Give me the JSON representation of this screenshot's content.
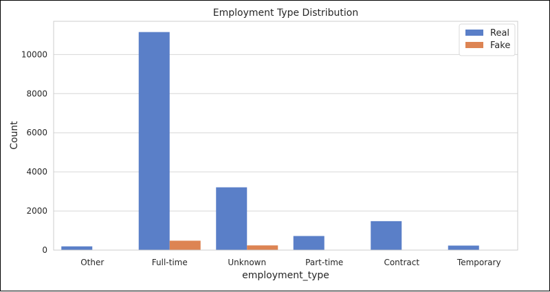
{
  "chart_data": {
    "type": "bar",
    "title": "Employment Type Distribution",
    "xlabel": "employment_type",
    "ylabel": "Count",
    "categories": [
      "Other",
      "Full-time",
      "Unknown",
      "Part-time",
      "Contract",
      "Temporary"
    ],
    "series": [
      {
        "name": "Real",
        "color": "#5a7fc8",
        "values": [
          190,
          11150,
          3210,
          720,
          1480,
          230
        ]
      },
      {
        "name": "Fake",
        "color": "#dd8453",
        "values": [
          10,
          480,
          240,
          15,
          5,
          5
        ]
      }
    ],
    "yticks": [
      0,
      2000,
      4000,
      6000,
      8000,
      10000
    ],
    "ytick_labels": [
      "0",
      "2000",
      "4000",
      "6000",
      "8000",
      "10000"
    ],
    "ylim": [
      0,
      11700
    ],
    "grid": "horizontal",
    "legend_position": "top-right"
  }
}
